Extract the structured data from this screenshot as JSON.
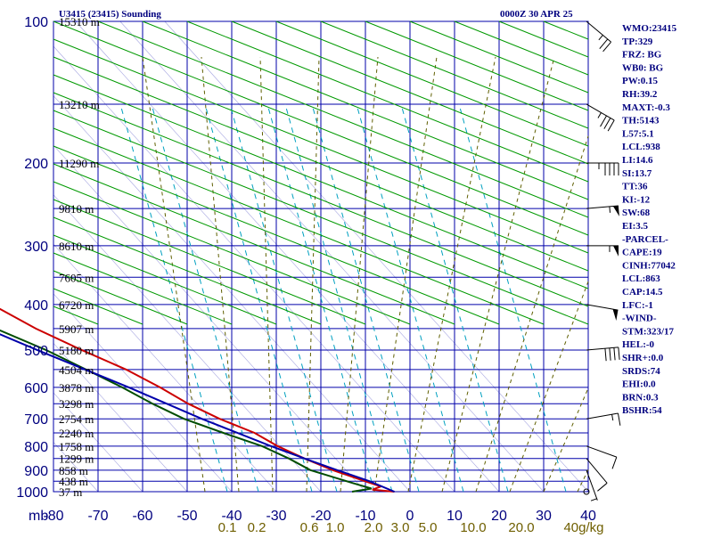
{
  "header": {
    "station": "U3415 (23415) Sounding",
    "time": "0000Z 30 APR 25"
  },
  "indices": [
    "WMO:23415",
    "TP:329",
    "FRZ: BG",
    "WB0: BG",
    "PW:0.15",
    "RH:39.2",
    "MAXT:-0.3",
    "TH:5143",
    "L57:5.1",
    "LCL:938",
    "LI:14.6",
    "SI:13.7",
    "TT:36",
    "KI:-12",
    "SW:68",
    "EI:3.5",
    "-PARCEL-",
    "CAPE:19",
    "CINH:77042",
    "LCL:863",
    "CAP:14.5",
    "LFC:-1",
    "-WIND-",
    "STM:323/17",
    "HEL:-0",
    "SHR+:0.0",
    "SRDS:74",
    "EHI:0.0",
    "BRN:0.3",
    "BSHR:54"
  ],
  "chart_data": {
    "type": "line",
    "title": "U3415 (23415) Sounding",
    "x_axis": {
      "unit_label": "mb",
      "temperature_ticks": [
        -80,
        -70,
        -60,
        -50,
        -40,
        -30,
        -20,
        -10,
        0,
        10,
        20,
        30,
        40
      ],
      "temperature_tick_labels": [
        "-80",
        "-70",
        "-60",
        "-50",
        "-40",
        "-30",
        "-20",
        "-10",
        "0",
        "10",
        "20",
        "30",
        "40"
      ],
      "mixing_ratio_labels": [
        "0.1",
        "0.2",
        "0.6",
        "1.0",
        "2.0",
        "3.0",
        "5.0",
        "10.0",
        "20.0",
        "40g/kg"
      ]
    },
    "y_axis": {
      "scale": "log",
      "range": [
        1000,
        100
      ],
      "ticks": [
        100,
        200,
        300,
        400,
        500,
        600,
        700,
        800,
        900,
        1000
      ],
      "tick_labels": [
        "100",
        "200",
        "300",
        "400",
        "500",
        "600",
        "700",
        "800",
        "900",
        "1000"
      ]
    },
    "height_labels": [
      {
        "p": 100,
        "label": "15310 m"
      },
      {
        "p": 150,
        "label": "13210 m"
      },
      {
        "p": 200,
        "label": "11290 m"
      },
      {
        "p": 250,
        "label": "9810 m"
      },
      {
        "p": 300,
        "label": "8610 m"
      },
      {
        "p": 350,
        "label": "7605 m"
      },
      {
        "p": 400,
        "label": "6720 m"
      },
      {
        "p": 450,
        "label": "5907 m"
      },
      {
        "p": 500,
        "label": "5180 m"
      },
      {
        "p": 550,
        "label": "4504 m"
      },
      {
        "p": 600,
        "label": "3878 m"
      },
      {
        "p": 650,
        "label": "3298 m"
      },
      {
        "p": 700,
        "label": "2754 m"
      },
      {
        "p": 750,
        "label": "2240 m"
      },
      {
        "p": 800,
        "label": "1758 m"
      },
      {
        "p": 850,
        "label": "1299 m"
      },
      {
        "p": 900,
        "label": "858 m"
      },
      {
        "p": 950,
        "label": "438 m"
      },
      {
        "p": 1000,
        "label": "37 m"
      }
    ],
    "series": [
      {
        "role": "temperature",
        "color": "#cc0000",
        "points": [
          [
            1000,
            -3.5
          ],
          [
            990,
            -8
          ],
          [
            975,
            -5.5
          ],
          [
            950,
            -8
          ],
          [
            900,
            -13
          ],
          [
            850,
            -17
          ],
          [
            800,
            -20.5
          ],
          [
            750,
            -23
          ],
          [
            700,
            -28
          ],
          [
            650,
            -32
          ],
          [
            600,
            -35
          ],
          [
            550,
            -39
          ],
          [
            500,
            -45
          ],
          [
            450,
            -51
          ],
          [
            400,
            -56
          ],
          [
            350,
            -63
          ],
          [
            320,
            -64.5
          ],
          [
            300,
            -65.5
          ],
          [
            280,
            -67
          ],
          [
            250,
            -70
          ],
          [
            200,
            -73
          ],
          [
            150,
            -77
          ],
          [
            100,
            -79.5
          ]
        ]
      },
      {
        "role": "dewpoint",
        "color": "#004d00",
        "points": [
          [
            1000,
            -13
          ],
          [
            985,
            -8
          ],
          [
            960,
            -11
          ],
          [
            900,
            -18
          ],
          [
            850,
            -20.5
          ],
          [
            800,
            -24
          ],
          [
            750,
            -30
          ],
          [
            700,
            -36
          ],
          [
            650,
            -40
          ],
          [
            600,
            -43.5
          ],
          [
            550,
            -48
          ],
          [
            500,
            -53
          ],
          [
            450,
            -60
          ],
          [
            400,
            -66
          ],
          [
            350,
            -73
          ],
          [
            320,
            -78
          ],
          [
            300,
            -79
          ],
          [
            250,
            -81.5
          ],
          [
            200,
            -87
          ],
          [
            180,
            -91
          ],
          [
            150,
            -94
          ],
          [
            100,
            -100.5
          ]
        ]
      },
      {
        "role": "parcel",
        "color": "#0000aa",
        "points": [
          [
            1000,
            -3.5
          ],
          [
            950,
            -7
          ],
          [
            900,
            -12
          ],
          [
            850,
            -17
          ],
          [
            800,
            -22
          ],
          [
            700,
            -32
          ],
          [
            600,
            -42
          ],
          [
            500,
            -55
          ],
          [
            400,
            -70
          ],
          [
            300,
            -90
          ]
        ]
      }
    ],
    "wind_barbs": [
      {
        "p": 100,
        "dir": 230,
        "spd": 25
      },
      {
        "p": 150,
        "dir": 240,
        "spd": 35
      },
      {
        "p": 200,
        "dir": 270,
        "spd": 45
      },
      {
        "p": 250,
        "dir": 275,
        "spd": 55
      },
      {
        "p": 300,
        "dir": 270,
        "spd": 55
      },
      {
        "p": 400,
        "dir": 260,
        "spd": 50
      },
      {
        "p": 500,
        "dir": 275,
        "spd": 40
      },
      {
        "p": 700,
        "dir": 280,
        "spd": 15
      },
      {
        "p": 800,
        "dir": 250,
        "spd": 10
      },
      {
        "p": 850,
        "dir": 220,
        "spd": 10
      },
      {
        "p": 900,
        "dir": 200,
        "spd": 5
      },
      {
        "p": 1000,
        "dir": 0,
        "spd": 0
      }
    ],
    "colors": {
      "grid": "#0000aa",
      "dry_adiabat": "#009900",
      "moist_adiabat": "#5f5f00",
      "mixing_ratio": "#00a0c0",
      "title": "#00007f"
    }
  }
}
